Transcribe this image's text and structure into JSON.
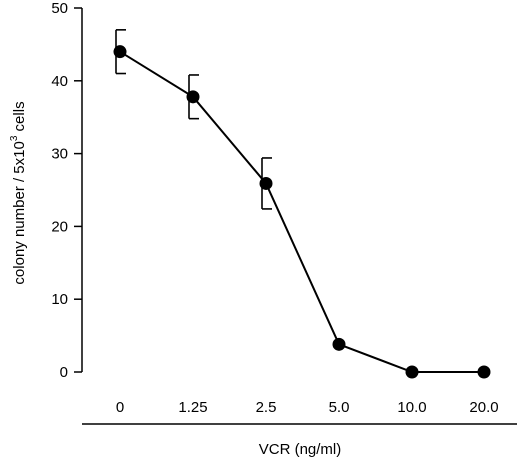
{
  "chart_data": {
    "type": "line",
    "categories": [
      "0",
      "1.25",
      "2.5",
      "5.0",
      "10.0",
      "20.0"
    ],
    "series": [
      {
        "values": [
          44,
          37.8,
          25.9,
          3.8,
          0,
          0
        ],
        "error": [
          3,
          3,
          3.5,
          0,
          0,
          0
        ]
      }
    ],
    "xlabel": "VCR (ng/ml)",
    "ylabel": {
      "prefix": "colony number / 5x10",
      "superscript": "3",
      "suffix": " cells"
    },
    "ylim": [
      0,
      50
    ],
    "yticks": [
      0,
      10,
      20,
      30,
      40,
      50
    ],
    "grid": false,
    "marker": "filled-circle",
    "error_bars": "upper and lower caps",
    "colors": {
      "line": "#000000",
      "marker": "#000000",
      "background": "#ffffff"
    }
  }
}
